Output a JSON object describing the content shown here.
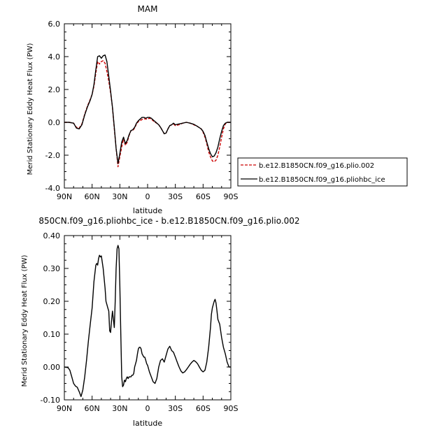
{
  "chart_data": [
    {
      "type": "line",
      "title": "MAM",
      "xlabel": "latitude",
      "ylabel": "Merid Stationary Eddy Heat Flux (PW)",
      "xlim": [
        90,
        -90
      ],
      "ylim": [
        -4.0,
        6.0
      ],
      "x_ticks": [
        90,
        60,
        30,
        0,
        -30,
        -60,
        -90
      ],
      "x_tick_labels": [
        "90N",
        "60N",
        "30N",
        "0",
        "30S",
        "60S",
        "90S"
      ],
      "y_ticks": [
        -4.0,
        -2.0,
        0.0,
        2.0,
        4.0,
        6.0
      ],
      "y_tick_labels": [
        "-4.0",
        "-2.0",
        "0.0",
        "2.0",
        "4.0",
        "6.0"
      ],
      "legend": "right",
      "series": [
        {
          "name": "b.e12.B1850CN.f09_g16.plio.002",
          "color": "#cc0000",
          "dash": "dashed",
          "x": [
            90,
            85,
            80,
            77,
            74,
            71,
            68,
            65,
            62,
            60,
            58,
            56,
            54,
            52,
            50,
            48,
            46,
            44,
            42,
            40,
            38,
            36,
            34,
            32,
            30,
            28,
            26,
            24,
            22,
            20,
            18,
            16,
            14,
            12,
            10,
            8,
            6,
            4,
            2,
            0,
            -2,
            -4,
            -6,
            -8,
            -10,
            -12,
            -14,
            -16,
            -18,
            -20,
            -22,
            -24,
            -26,
            -28,
            -30,
            -34,
            -38,
            -42,
            -46,
            -50,
            -54,
            -58,
            -60,
            -62,
            -64,
            -66,
            -68,
            -70,
            -72,
            -74,
            -76,
            -78,
            -80,
            -82,
            -84,
            -86,
            -88,
            -90
          ],
          "y": [
            0.0,
            0.0,
            -0.05,
            -0.3,
            -0.35,
            -0.1,
            0.5,
            1.0,
            1.4,
            1.7,
            2.2,
            3.0,
            3.7,
            3.55,
            3.7,
            3.75,
            3.6,
            3.1,
            2.5,
            1.8,
            0.9,
            -0.4,
            -1.6,
            -2.7,
            -2.1,
            -1.5,
            -1.0,
            -1.4,
            -1.2,
            -0.8,
            -0.5,
            -0.5,
            -0.35,
            -0.1,
            0.05,
            0.1,
            0.18,
            0.22,
            0.2,
            0.2,
            0.25,
            0.2,
            0.1,
            0.0,
            -0.05,
            -0.15,
            -0.3,
            -0.5,
            -0.7,
            -0.65,
            -0.4,
            -0.2,
            -0.15,
            -0.1,
            -0.2,
            -0.15,
            -0.05,
            0.0,
            -0.05,
            -0.15,
            -0.25,
            -0.4,
            -0.6,
            -0.9,
            -1.3,
            -1.8,
            -2.1,
            -2.35,
            -2.4,
            -2.3,
            -2.0,
            -1.5,
            -0.9,
            -0.4,
            -0.1,
            0.0,
            0.0,
            0.0
          ]
        },
        {
          "name": "b.e12.B1850CN.f09_g16.pliohbc_ice",
          "color": "#000000",
          "dash": "solid",
          "x": [
            90,
            85,
            80,
            77,
            74,
            71,
            68,
            65,
            62,
            60,
            58,
            56,
            54,
            52,
            50,
            48,
            46,
            44,
            42,
            40,
            38,
            36,
            34,
            32,
            30,
            28,
            26,
            24,
            22,
            20,
            18,
            16,
            14,
            12,
            10,
            8,
            6,
            4,
            2,
            0,
            -2,
            -4,
            -6,
            -8,
            -10,
            -12,
            -14,
            -16,
            -18,
            -20,
            -22,
            -24,
            -26,
            -28,
            -30,
            -34,
            -38,
            -42,
            -46,
            -50,
            -54,
            -58,
            -60,
            -62,
            -64,
            -66,
            -68,
            -70,
            -72,
            -74,
            -76,
            -78,
            -80,
            -82,
            -84,
            -86,
            -88,
            -90
          ],
          "y": [
            0.0,
            0.0,
            -0.05,
            -0.35,
            -0.4,
            -0.15,
            0.45,
            0.95,
            1.35,
            1.7,
            2.3,
            3.2,
            4.0,
            4.05,
            3.9,
            4.05,
            4.1,
            3.7,
            2.8,
            1.9,
            0.9,
            -0.3,
            -1.6,
            -2.5,
            -1.9,
            -1.2,
            -0.9,
            -1.3,
            -1.1,
            -0.75,
            -0.5,
            -0.45,
            -0.3,
            -0.05,
            0.1,
            0.2,
            0.3,
            0.3,
            0.25,
            0.3,
            0.3,
            0.25,
            0.15,
            0.05,
            -0.05,
            -0.15,
            -0.3,
            -0.5,
            -0.7,
            -0.65,
            -0.4,
            -0.2,
            -0.15,
            -0.05,
            -0.15,
            -0.1,
            -0.05,
            0.0,
            -0.05,
            -0.12,
            -0.25,
            -0.4,
            -0.55,
            -0.8,
            -1.2,
            -1.6,
            -1.9,
            -2.1,
            -2.05,
            -1.85,
            -1.5,
            -1.0,
            -0.55,
            -0.2,
            -0.05,
            0.0,
            0.0,
            0.0
          ]
        }
      ]
    },
    {
      "type": "line",
      "title": "850CN.f09_g16.pliohbc_ice - b.e12.B1850CN.f09_g16.plio.002",
      "xlabel": "latitude",
      "ylabel": "Merid Stationary Eddy Heat Flux (PW)",
      "xlim": [
        90,
        -90
      ],
      "ylim": [
        -0.1,
        0.4
      ],
      "x_ticks": [
        90,
        60,
        30,
        0,
        -30,
        -60,
        -90
      ],
      "x_tick_labels": [
        "90N",
        "60N",
        "30N",
        "0",
        "30S",
        "60S",
        "90S"
      ],
      "y_ticks": [
        -0.1,
        0.0,
        0.1,
        0.2,
        0.3,
        0.4
      ],
      "y_tick_labels": [
        "-0.10",
        "0.00",
        "0.10",
        "0.20",
        "0.30",
        "0.40"
      ],
      "series": [
        {
          "color": "#000000",
          "x": [
            90,
            86,
            84,
            82,
            80,
            78,
            76,
            74,
            72,
            70,
            68,
            66,
            64,
            62,
            60,
            58,
            56,
            55,
            54,
            53,
            52,
            51,
            50,
            48,
            46,
            45,
            44,
            43,
            42,
            41,
            40,
            39,
            38,
            37,
            36,
            35,
            34,
            33,
            32,
            31,
            30,
            29,
            28,
            27,
            26,
            25,
            24,
            23,
            22,
            21,
            20,
            19,
            18,
            17,
            16,
            15,
            14,
            13,
            12,
            11,
            10,
            9,
            8,
            7,
            6,
            5,
            4,
            3,
            2,
            1,
            0,
            -2,
            -4,
            -6,
            -8,
            -10,
            -12,
            -14,
            -16,
            -18,
            -20,
            -22,
            -24,
            -26,
            -28,
            -30,
            -32,
            -34,
            -36,
            -38,
            -40,
            -42,
            -44,
            -46,
            -48,
            -50,
            -52,
            -54,
            -56,
            -58,
            -60,
            -62,
            -64,
            -66,
            -68,
            -69,
            -70,
            -71,
            -72,
            -73,
            -74,
            -75,
            -76,
            -78,
            -80,
            -82,
            -84,
            -86,
            -88,
            -90
          ],
          "y": [
            0.0,
            -0.002,
            -0.01,
            -0.03,
            -0.05,
            -0.058,
            -0.062,
            -0.075,
            -0.09,
            -0.07,
            -0.03,
            0.02,
            0.08,
            0.13,
            0.18,
            0.26,
            0.31,
            0.315,
            0.31,
            0.33,
            0.34,
            0.335,
            0.338,
            0.3,
            0.24,
            0.2,
            0.19,
            0.18,
            0.17,
            0.11,
            0.105,
            0.14,
            0.17,
            0.145,
            0.12,
            0.2,
            0.3,
            0.36,
            0.37,
            0.36,
            0.25,
            0.1,
            -0.03,
            -0.06,
            -0.055,
            -0.04,
            -0.045,
            -0.035,
            -0.03,
            -0.035,
            -0.03,
            -0.03,
            -0.03,
            -0.025,
            -0.025,
            -0.02,
            0.0,
            0.01,
            0.02,
            0.04,
            0.055,
            0.06,
            0.06,
            0.055,
            0.04,
            0.035,
            0.03,
            0.03,
            0.02,
            0.01,
            0.005,
            -0.015,
            -0.03,
            -0.045,
            -0.05,
            -0.035,
            0.0,
            0.02,
            0.025,
            0.015,
            0.035,
            0.055,
            0.063,
            0.05,
            0.045,
            0.03,
            0.015,
            0.0,
            -0.012,
            -0.018,
            -0.015,
            -0.008,
            0.0,
            0.008,
            0.015,
            0.02,
            0.016,
            0.01,
            0.0,
            -0.01,
            -0.015,
            -0.01,
            0.015,
            0.06,
            0.12,
            0.16,
            0.18,
            0.19,
            0.2,
            0.206,
            0.195,
            0.17,
            0.145,
            0.13,
            0.09,
            0.06,
            0.04,
            0.015,
            0.0,
            0.0
          ]
        }
      ]
    }
  ]
}
